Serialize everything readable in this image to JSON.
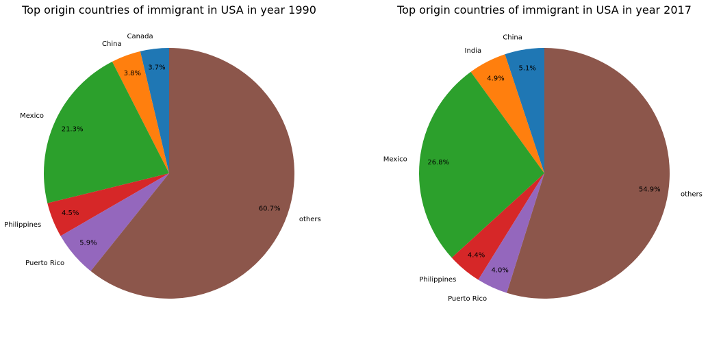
{
  "chart_data": [
    {
      "type": "pie",
      "title": "Top origin countries of immigrant in USA in year 1990",
      "start_angle_deg": 90,
      "direction": "counterclockwise",
      "slices": [
        {
          "label": "Canada",
          "value": 3.7,
          "pct_label": "3.7%",
          "color": "#1f77b4"
        },
        {
          "label": "China",
          "value": 3.8,
          "pct_label": "3.8%",
          "color": "#ff7f0e"
        },
        {
          "label": "Mexico",
          "value": 21.3,
          "pct_label": "21.3%",
          "color": "#2ca02c"
        },
        {
          "label": "Philippines",
          "value": 4.5,
          "pct_label": "4.5%",
          "color": "#d62728"
        },
        {
          "label": "Puerto Rico",
          "value": 5.9,
          "pct_label": "5.9%",
          "color": "#9467bd"
        },
        {
          "label": "others",
          "value": 60.7,
          "pct_label": "60.7%",
          "color": "#8c564b"
        }
      ]
    },
    {
      "type": "pie",
      "title": "Top origin countries of immigrant in USA in year 2017",
      "start_angle_deg": 90,
      "direction": "counterclockwise",
      "slices": [
        {
          "label": "China",
          "value": 5.1,
          "pct_label": "5.1%",
          "color": "#1f77b4"
        },
        {
          "label": "India",
          "value": 4.9,
          "pct_label": "4.9%",
          "color": "#ff7f0e"
        },
        {
          "label": "Mexico",
          "value": 26.8,
          "pct_label": "26.8%",
          "color": "#2ca02c"
        },
        {
          "label": "Philippines",
          "value": 4.4,
          "pct_label": "4.4%",
          "color": "#d62728"
        },
        {
          "label": "Puerto Rico",
          "value": 4.0,
          "pct_label": "4.0%",
          "color": "#9467bd"
        },
        {
          "label": "others",
          "value": 54.9,
          "pct_label": "54.9%",
          "color": "#8c564b"
        }
      ]
    }
  ]
}
